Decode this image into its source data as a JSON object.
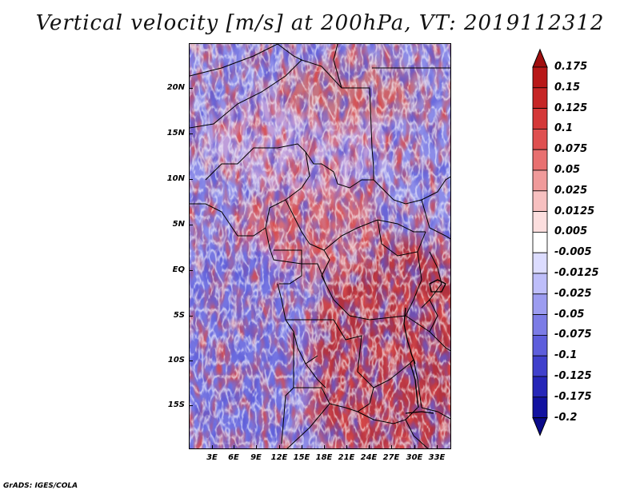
{
  "title": "Vertical velocity [m/s] at 200hPa, VT: 2019112312",
  "credit": "GrADS: IGES/COLA",
  "y_axis_labels": [
    "20N",
    "15N",
    "10N",
    "5N",
    "EQ",
    "5S",
    "10S",
    "15S"
  ],
  "x_axis_labels": [
    "3E",
    "6E",
    "9E",
    "12E",
    "15E",
    "18E",
    "21E",
    "24E",
    "27E",
    "30E",
    "33E"
  ],
  "colorbar": {
    "labels": [
      "0.175",
      "0.15",
      "0.125",
      "0.1",
      "0.075",
      "0.05",
      "0.025",
      "0.0125",
      "0.005",
      "-0.005",
      "-0.0125",
      "-0.025",
      "-0.05",
      "-0.075",
      "-0.1",
      "-0.125",
      "-0.175",
      "-0.2"
    ],
    "colors": [
      "#a00f0f",
      "#b81818",
      "#c62626",
      "#d43838",
      "#df5050",
      "#e87070",
      "#f09a9a",
      "#f7c0c0",
      "#fcdede",
      "#ffffff",
      "#dcdcff",
      "#bebefa",
      "#9c9cf0",
      "#7c7ce6",
      "#5e5edc",
      "#4040cc",
      "#2626b8",
      "#1212a0",
      "#0a0a8a"
    ]
  },
  "map": {
    "field": "vertical velocity",
    "level": "200hPa",
    "valid_time": "2019112312",
    "lat_range": [
      "19S",
      "25N"
    ],
    "lon_range": [
      "0E",
      "35E"
    ],
    "colors": {
      "positive": "#c02020",
      "negative": "#3030c0",
      "neutral": "#ffffff",
      "borders": "#000000"
    }
  }
}
